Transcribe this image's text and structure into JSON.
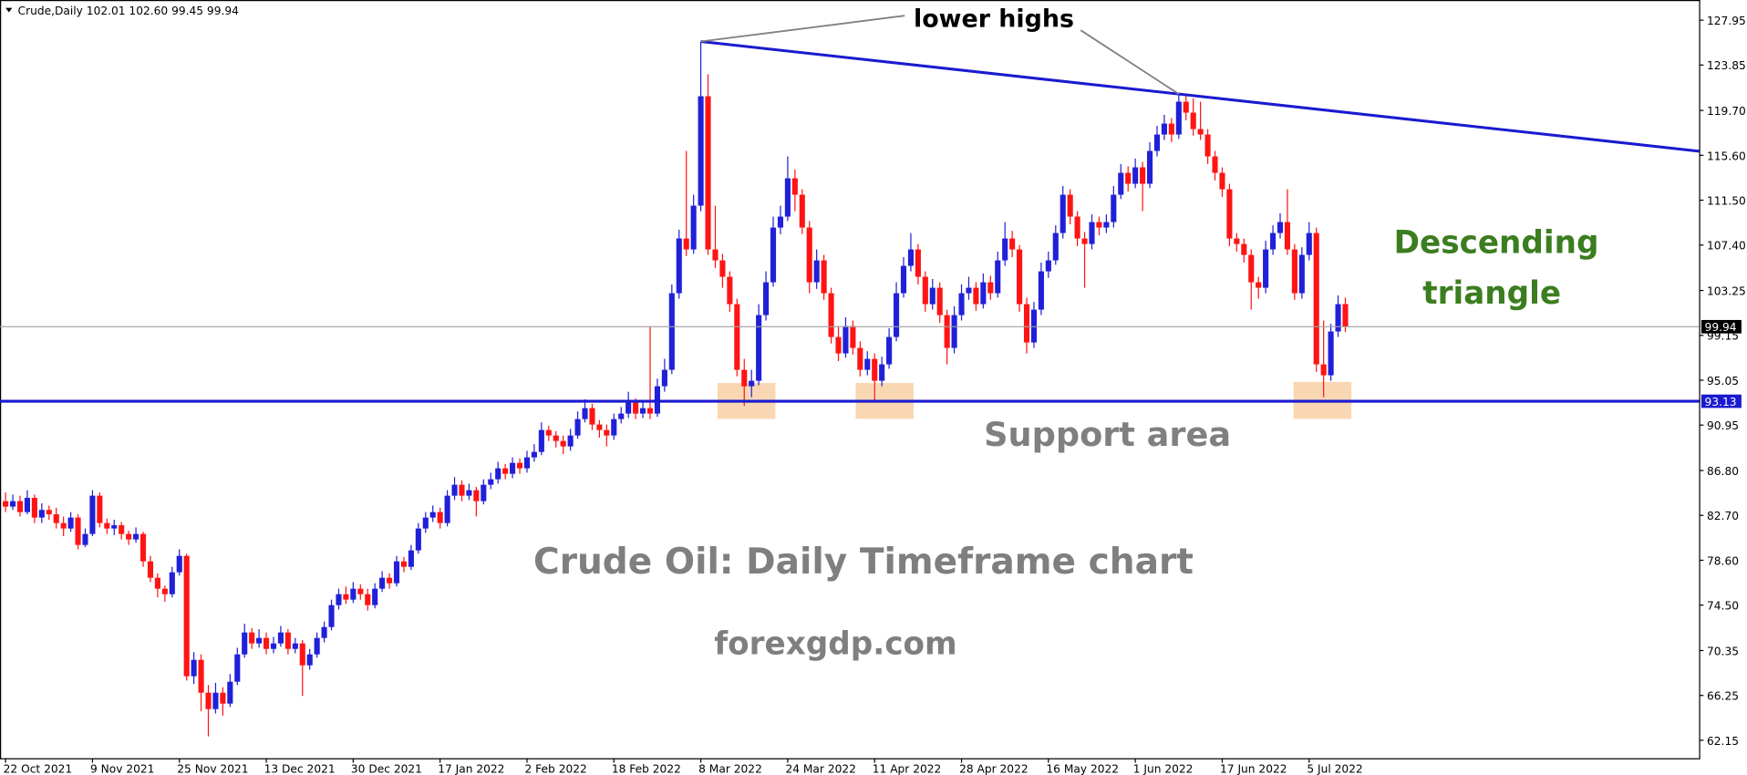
{
  "info_line": "Crude,Daily  102.01 102.60 99.45 99.94",
  "chart_data": {
    "type": "candlestick",
    "colors": {
      "up": "#2020d8",
      "down": "#ff1414",
      "trendline": "#1a1ad0",
      "support": "#1a1ad0"
    },
    "ylim": [
      62.15,
      127.95
    ],
    "yticks": [
      127.95,
      123.85,
      {
        "value": 119.7,
        "label": "119.70"
      },
      {
        "value": 115.6,
        "label": "115.60"
      },
      {
        "value": 111.5,
        "label": "111.50"
      },
      {
        "value": 107.4,
        "label": "107.40"
      },
      103.25,
      99.15,
      95.05,
      90.95,
      {
        "value": 86.8,
        "label": "86.80"
      },
      {
        "value": 82.7,
        "label": "82.70"
      },
      {
        "value": 78.6,
        "label": "78.60"
      },
      {
        "value": 74.5,
        "label": "74.50"
      },
      70.35,
      66.25,
      62.15
    ],
    "support_level": 93.13,
    "categories": [
      "22 Oct 2021",
      null,
      null,
      null,
      null,
      null,
      null,
      null,
      null,
      null,
      null,
      null,
      "9 Nov 2021",
      null,
      null,
      null,
      null,
      null,
      null,
      null,
      null,
      null,
      null,
      null,
      "25 Nov 2021",
      null,
      null,
      null,
      null,
      null,
      null,
      null,
      null,
      null,
      null,
      null,
      "13 Dec 2021",
      null,
      null,
      null,
      null,
      null,
      null,
      null,
      null,
      null,
      null,
      null,
      "30 Dec 2021",
      null,
      null,
      null,
      null,
      null,
      null,
      null,
      null,
      null,
      null,
      null,
      "17 Jan 2022",
      null,
      null,
      null,
      null,
      null,
      null,
      null,
      null,
      null,
      null,
      null,
      "2 Feb 2022",
      null,
      null,
      null,
      null,
      null,
      null,
      null,
      null,
      null,
      null,
      null,
      "18 Feb 2022",
      null,
      null,
      null,
      null,
      null,
      null,
      null,
      null,
      null,
      null,
      null,
      "8 Mar 2022",
      null,
      null,
      null,
      null,
      null,
      null,
      null,
      null,
      null,
      null,
      null,
      "24 Mar 2022",
      null,
      null,
      null,
      null,
      null,
      null,
      null,
      null,
      null,
      null,
      null,
      "11 Apr 2022",
      null,
      null,
      null,
      null,
      null,
      null,
      null,
      null,
      null,
      null,
      null,
      "28 Apr 2022",
      null,
      null,
      null,
      null,
      null,
      null,
      null,
      null,
      null,
      null,
      null,
      "16 May 2022",
      null,
      null,
      null,
      null,
      null,
      null,
      null,
      null,
      null,
      null,
      null,
      "1 Jun 2022",
      null,
      null,
      null,
      null,
      null,
      null,
      null,
      null,
      null,
      null,
      null,
      "17 Jun 2022",
      null,
      null,
      null,
      null,
      null,
      null,
      null,
      null,
      null,
      null,
      null,
      "5 Jul 2022",
      null,
      null,
      null,
      null,
      null
    ],
    "candles": [
      [
        84,
        84.8,
        83,
        83.5
      ],
      [
        83.5,
        84.6,
        83.2,
        84
      ],
      [
        84,
        84.5,
        82.6,
        83
      ],
      [
        83,
        85,
        82.8,
        84.3
      ],
      [
        84.3,
        84.6,
        82,
        82.5
      ],
      [
        82.5,
        83.8,
        82,
        83.2
      ],
      [
        83.2,
        83.6,
        82.3,
        82.8
      ],
      [
        82.8,
        83.4,
        81.5,
        82
      ],
      [
        82,
        82.6,
        80.8,
        81.5
      ],
      [
        81.5,
        83,
        81.2,
        82.5
      ],
      [
        82.5,
        82.8,
        79.6,
        80
      ],
      [
        80,
        81.5,
        79.8,
        81
      ],
      [
        81,
        85,
        80.8,
        84.5
      ],
      [
        84.5,
        84.8,
        81.6,
        82
      ],
      [
        82,
        82.4,
        81,
        81.5
      ],
      [
        81.5,
        82.3,
        80.9,
        81.8
      ],
      [
        81.8,
        82.1,
        80.5,
        81
      ],
      [
        81,
        81.3,
        80,
        80.5
      ],
      [
        80.5,
        81.6,
        80.2,
        81
      ],
      [
        81,
        81.2,
        78,
        78.5
      ],
      [
        78.5,
        79,
        76.6,
        77
      ],
      [
        77,
        77.4,
        75.2,
        76
      ],
      [
        76,
        76.3,
        74.8,
        75.5
      ],
      [
        75.5,
        78,
        75.2,
        77.5
      ],
      [
        77.5,
        79.6,
        77.2,
        79
      ],
      [
        79,
        79.2,
        67.6,
        68
      ],
      [
        68,
        70.2,
        67.3,
        69.5
      ],
      [
        69.5,
        70,
        64.8,
        66.5
      ],
      [
        66.5,
        67.2,
        62.5,
        65
      ],
      [
        65,
        67.4,
        64.6,
        66.5
      ],
      [
        66.5,
        67,
        64.4,
        65.5
      ],
      [
        65.5,
        68.2,
        65.2,
        67.5
      ],
      [
        67.5,
        70.6,
        67.2,
        70
      ],
      [
        70,
        72.8,
        69.7,
        72
      ],
      [
        72,
        72.4,
        70.5,
        71
      ],
      [
        71,
        72.3,
        70.6,
        71.5
      ],
      [
        71.5,
        72,
        70,
        70.5
      ],
      [
        70.5,
        71.6,
        70.1,
        71
      ],
      [
        71,
        72.6,
        70.7,
        72
      ],
      [
        72,
        72.3,
        70,
        70.5
      ],
      [
        70.5,
        71.5,
        70.1,
        71
      ],
      [
        71,
        71.3,
        66.2,
        69
      ],
      [
        69,
        70.5,
        68.6,
        70
      ],
      [
        70,
        72,
        69.7,
        71.5
      ],
      [
        71.5,
        73,
        71.1,
        72.5
      ],
      [
        72.5,
        75,
        72.2,
        74.5
      ],
      [
        74.5,
        76,
        74.1,
        75.5
      ],
      [
        75.5,
        76.2,
        74.6,
        75
      ],
      [
        75,
        76.6,
        74.7,
        76
      ],
      [
        76,
        76.4,
        75,
        75.5
      ],
      [
        75.5,
        76,
        74,
        74.5
      ],
      [
        74.5,
        76.5,
        74.2,
        76
      ],
      [
        76,
        77.6,
        75.7,
        77
      ],
      [
        77,
        77.4,
        76,
        76.5
      ],
      [
        76.5,
        79,
        76.2,
        78.5
      ],
      [
        78.5,
        78.9,
        77.5,
        78
      ],
      [
        78,
        80,
        77.7,
        79.5
      ],
      [
        79.5,
        82,
        79.2,
        81.5
      ],
      [
        81.5,
        83,
        81.1,
        82.5
      ],
      [
        82.5,
        83.6,
        82.1,
        83
      ],
      [
        83,
        83.4,
        81.5,
        82
      ],
      [
        82,
        85,
        81.7,
        84.5
      ],
      [
        84.5,
        86.2,
        84.1,
        85.5
      ],
      [
        85.5,
        85.9,
        84,
        84.5
      ],
      [
        84.5,
        85.6,
        84.1,
        85
      ],
      [
        85,
        85.3,
        82.6,
        84
      ],
      [
        84,
        86,
        83.7,
        85.5
      ],
      [
        85.5,
        86.6,
        85.1,
        86
      ],
      [
        86,
        87.6,
        85.6,
        87
      ],
      [
        87,
        87.4,
        86,
        86.5
      ],
      [
        86.5,
        88,
        86.1,
        87.5
      ],
      [
        87.5,
        87.9,
        86.5,
        87
      ],
      [
        87,
        88.6,
        86.6,
        88
      ],
      [
        88,
        89.2,
        87.6,
        88.5
      ],
      [
        88.5,
        91.2,
        88.2,
        90.5
      ],
      [
        90.5,
        90.9,
        89.5,
        90
      ],
      [
        90,
        90.4,
        88.9,
        89.5
      ],
      [
        89.5,
        90,
        88.3,
        89
      ],
      [
        89,
        90.6,
        88.6,
        90
      ],
      [
        90,
        92.2,
        89.7,
        91.5
      ],
      [
        91.5,
        93.3,
        91.2,
        92.5
      ],
      [
        92.5,
        92.9,
        90.5,
        91
      ],
      [
        91,
        91.4,
        89.8,
        90.5
      ],
      [
        90.5,
        91,
        89,
        90
      ],
      [
        90,
        92,
        89.6,
        91.5
      ],
      [
        91.5,
        92.6,
        91.1,
        92
      ],
      [
        92,
        94,
        91.6,
        93
      ],
      [
        93,
        93.4,
        91.5,
        92
      ],
      [
        92,
        93.2,
        91.6,
        92.5
      ],
      [
        92.5,
        100,
        91.5,
        92
      ],
      [
        92,
        95.2,
        91.7,
        94.5
      ],
      [
        94.5,
        97,
        94,
        96
      ],
      [
        96,
        103.8,
        95.6,
        103
      ],
      [
        103,
        108.8,
        102.5,
        108
      ],
      [
        108,
        116,
        106.4,
        107
      ],
      [
        107,
        112,
        106.6,
        111
      ],
      [
        111,
        126,
        110.5,
        121
      ],
      [
        121,
        123,
        106.5,
        107
      ],
      [
        107,
        111,
        105.3,
        106
      ],
      [
        106,
        106.6,
        103.5,
        104.5
      ],
      [
        104.5,
        105,
        101.3,
        102
      ],
      [
        102,
        102.5,
        95.4,
        96
      ],
      [
        96,
        97,
        92.7,
        94.5
      ],
      [
        94.5,
        96,
        93.5,
        95
      ],
      [
        95,
        102,
        94.6,
        101
      ],
      [
        101,
        105,
        100.5,
        104
      ],
      [
        104,
        110,
        103.6,
        109
      ],
      [
        109,
        111,
        108.4,
        110
      ],
      [
        110,
        115.5,
        109.6,
        113.5
      ],
      [
        113.5,
        114.3,
        110.5,
        112
      ],
      [
        112,
        112.5,
        108.4,
        109
      ],
      [
        109,
        109.6,
        103,
        104
      ],
      [
        104,
        107,
        103.4,
        106
      ],
      [
        106,
        106.5,
        102.4,
        103
      ],
      [
        103,
        103.5,
        98.4,
        99
      ],
      [
        99,
        100,
        96.8,
        97.5
      ],
      [
        97.5,
        100.8,
        97.1,
        100
      ],
      [
        100,
        100.5,
        97.4,
        98
      ],
      [
        98,
        98.6,
        95.4,
        96
      ],
      [
        96,
        97.7,
        95.5,
        97
      ],
      [
        97,
        97.5,
        93.2,
        95
      ],
      [
        95,
        97.2,
        94.5,
        96.5
      ],
      [
        96.5,
        99.8,
        96.1,
        99
      ],
      [
        99,
        104,
        98.6,
        103
      ],
      [
        103,
        106.3,
        102.6,
        105.5
      ],
      [
        105.5,
        108.5,
        105,
        107
      ],
      [
        107,
        107.5,
        103.8,
        104.5
      ],
      [
        104.5,
        105,
        101.3,
        102
      ],
      [
        102,
        104.3,
        101.5,
        103.5
      ],
      [
        103.5,
        104,
        100.3,
        101
      ],
      [
        101,
        101.5,
        96.5,
        98
      ],
      [
        98,
        101.8,
        97.5,
        101
      ],
      [
        101,
        103.8,
        100.5,
        103
      ],
      [
        103,
        104.5,
        102.4,
        103.5
      ],
      [
        103.5,
        104,
        101.4,
        102
      ],
      [
        102,
        104.8,
        101.6,
        104
      ],
      [
        104,
        104.6,
        102.4,
        103
      ],
      [
        103,
        106.8,
        102.6,
        106
      ],
      [
        106,
        109.5,
        105.5,
        108
      ],
      [
        108,
        108.7,
        106.3,
        107
      ],
      [
        107,
        107.4,
        101.3,
        102
      ],
      [
        102,
        102.6,
        97.5,
        98.5
      ],
      [
        98.5,
        102.2,
        98,
        101.5
      ],
      [
        101.5,
        105.8,
        101,
        105
      ],
      [
        105,
        106.8,
        104.4,
        106
      ],
      [
        106,
        109.2,
        105.6,
        108.5
      ],
      [
        108.5,
        112.8,
        108,
        112
      ],
      [
        112,
        112.5,
        109.3,
        110
      ],
      [
        110,
        110.5,
        107.3,
        108
      ],
      [
        108,
        108.6,
        103.5,
        107.5
      ],
      [
        107.5,
        110.2,
        107,
        109.5
      ],
      [
        109.5,
        110,
        108.3,
        109
      ],
      [
        109,
        110.2,
        108.5,
        109.5
      ],
      [
        109.5,
        112.8,
        109,
        112
      ],
      [
        112,
        114.8,
        111.6,
        114
      ],
      [
        114,
        114.6,
        112.3,
        113
      ],
      [
        113,
        115.3,
        112.6,
        114.5
      ],
      [
        114.5,
        115,
        110.5,
        113
      ],
      [
        113,
        116.8,
        112.6,
        116
      ],
      [
        116,
        118.3,
        115.5,
        117.5
      ],
      [
        117.5,
        119.3,
        117,
        118.5
      ],
      [
        118.5,
        119,
        116.8,
        117.5
      ],
      [
        117.5,
        121.2,
        117.1,
        120.5
      ],
      [
        120.5,
        121,
        118.8,
        119.5
      ],
      [
        119.5,
        120.8,
        117.4,
        118
      ],
      [
        118,
        120.5,
        117,
        117.5
      ],
      [
        117.5,
        118,
        114.8,
        115.5
      ],
      [
        115.5,
        116,
        113.3,
        114
      ],
      [
        114,
        114.5,
        111.8,
        112.5
      ],
      [
        112.5,
        113,
        107.3,
        108
      ],
      [
        108,
        108.5,
        106.8,
        107.5
      ],
      [
        107.5,
        108,
        105.8,
        106.5
      ],
      [
        106.5,
        107,
        101.5,
        104
      ],
      [
        104,
        104.5,
        102.5,
        103.5
      ],
      [
        103.5,
        107.8,
        103,
        107
      ],
      [
        107,
        109.2,
        106.5,
        108.5
      ],
      [
        108.5,
        110.3,
        108,
        109.5
      ],
      [
        109.5,
        112.5,
        106.5,
        107
      ],
      [
        107,
        107.5,
        102.4,
        103
      ],
      [
        103,
        107.2,
        102.5,
        106.5
      ],
      [
        106.5,
        109.5,
        106,
        108.5
      ],
      [
        108.5,
        109,
        95.8,
        96.5
      ],
      [
        96.5,
        100.5,
        93.5,
        95.5
      ],
      [
        95.5,
        100.2,
        95,
        99.5
      ],
      [
        99.5,
        102.8,
        99,
        102
      ],
      [
        102.01,
        102.6,
        99.45,
        99.94
      ]
    ],
    "annotations": {
      "lower_highs": "lower highs",
      "pattern": [
        "Descending",
        "triangle"
      ],
      "support": "Support area",
      "caption": "Crude Oil: Daily Timeframe chart",
      "site": "forexgdp.com"
    }
  }
}
